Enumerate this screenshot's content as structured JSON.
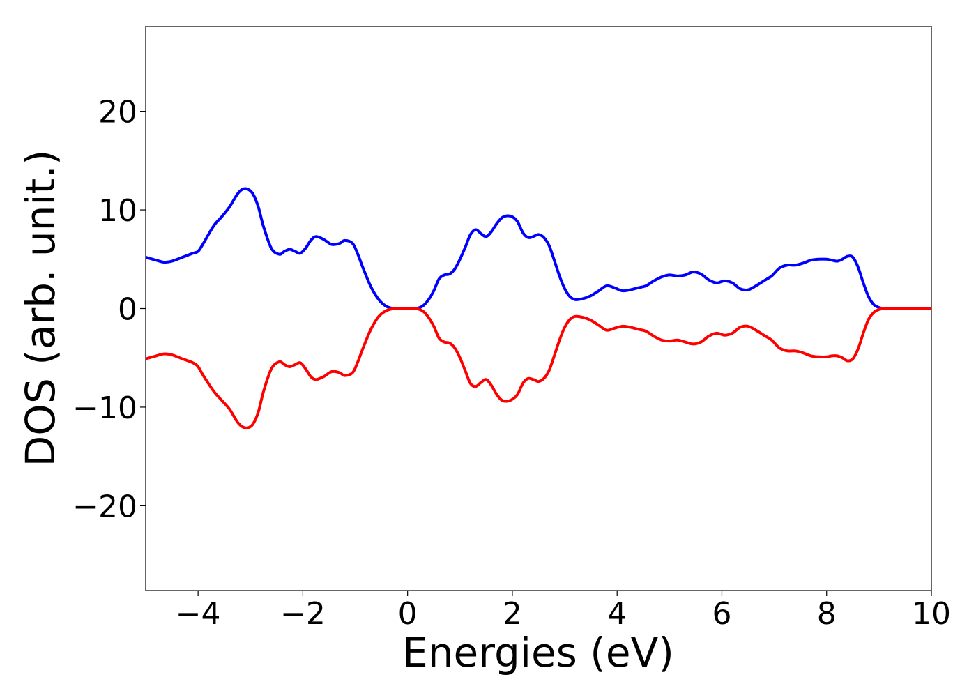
{
  "chart_data": {
    "type": "line",
    "title": "",
    "xlabel": "Energies (eV)",
    "ylabel": "DOS (arb. unit.)",
    "xlim": [
      -5,
      10
    ],
    "ylim": [
      -28.6,
      28.6
    ],
    "xticks": [
      -4,
      -2,
      0,
      2,
      4,
      6,
      8,
      10
    ],
    "xtick_labels": [
      "−4",
      "−2",
      "0",
      "2",
      "4",
      "6",
      "8",
      "10"
    ],
    "yticks": [
      -20,
      -10,
      0,
      10,
      20
    ],
    "ytick_labels": [
      "−20",
      "−10",
      "0",
      "10",
      "20"
    ],
    "grid": false,
    "legend": "none",
    "series": [
      {
        "color": "#0000ff",
        "x": [
          -5.0,
          -4.8,
          -4.65,
          -4.5,
          -4.3,
          -4.1,
          -4.0,
          -3.9,
          -3.7,
          -3.55,
          -3.4,
          -3.25,
          -3.15,
          -3.05,
          -2.95,
          -2.85,
          -2.75,
          -2.6,
          -2.45,
          -2.35,
          -2.25,
          -2.15,
          -2.05,
          -1.95,
          -1.85,
          -1.75,
          -1.6,
          -1.45,
          -1.3,
          -1.2,
          -1.05,
          -0.95,
          -0.85,
          -0.7,
          -0.55,
          -0.4,
          -0.25,
          -0.1,
          0.0,
          0.1,
          0.2,
          0.3,
          0.4,
          0.5,
          0.6,
          0.7,
          0.8,
          0.9,
          1.0,
          1.1,
          1.2,
          1.3,
          1.4,
          1.5,
          1.6,
          1.7,
          1.8,
          1.9,
          2.0,
          2.1,
          2.2,
          2.3,
          2.4,
          2.5,
          2.6,
          2.7,
          2.8,
          2.9,
          3.0,
          3.1,
          3.2,
          3.35,
          3.5,
          3.65,
          3.8,
          3.95,
          4.1,
          4.25,
          4.4,
          4.55,
          4.7,
          4.85,
          5.0,
          5.15,
          5.3,
          5.45,
          5.6,
          5.75,
          5.9,
          6.05,
          6.2,
          6.35,
          6.5,
          6.65,
          6.8,
          6.95,
          7.1,
          7.25,
          7.4,
          7.55,
          7.7,
          7.85,
          8.0,
          8.1,
          8.2,
          8.3,
          8.4,
          8.5,
          8.6,
          8.7,
          8.8,
          8.9,
          9.0,
          9.1,
          9.25,
          9.5,
          10.0
        ],
        "y": [
          5.2,
          4.9,
          4.7,
          4.8,
          5.2,
          5.6,
          5.8,
          6.6,
          8.4,
          9.3,
          10.3,
          11.6,
          12.1,
          12.1,
          11.6,
          10.3,
          8.3,
          6.1,
          5.5,
          5.8,
          6.0,
          5.8,
          5.6,
          6.1,
          6.9,
          7.3,
          7.0,
          6.5,
          6.6,
          6.9,
          6.6,
          5.5,
          4.1,
          2.2,
          0.9,
          0.2,
          0.0,
          0.0,
          0.0,
          0.0,
          0.05,
          0.3,
          0.9,
          1.8,
          3.0,
          3.4,
          3.5,
          4.0,
          5.0,
          6.2,
          7.5,
          8.0,
          7.6,
          7.3,
          7.8,
          8.6,
          9.2,
          9.4,
          9.3,
          8.8,
          7.7,
          7.2,
          7.3,
          7.5,
          7.2,
          6.4,
          4.9,
          3.3,
          2.0,
          1.2,
          0.9,
          1.0,
          1.3,
          1.8,
          2.3,
          2.1,
          1.8,
          1.9,
          2.1,
          2.3,
          2.8,
          3.2,
          3.4,
          3.3,
          3.4,
          3.7,
          3.5,
          2.9,
          2.6,
          2.8,
          2.6,
          2.0,
          1.9,
          2.3,
          2.8,
          3.3,
          4.1,
          4.4,
          4.4,
          4.6,
          4.9,
          5.0,
          5.0,
          4.9,
          4.8,
          5.0,
          5.3,
          5.2,
          4.2,
          2.6,
          1.2,
          0.4,
          0.1,
          0.0,
          0.0,
          0.0,
          0.0
        ]
      },
      {
        "color": "#ff0000",
        "x": [
          -5.0,
          -4.8,
          -4.65,
          -4.5,
          -4.3,
          -4.1,
          -4.0,
          -3.9,
          -3.7,
          -3.55,
          -3.4,
          -3.25,
          -3.15,
          -3.05,
          -2.95,
          -2.85,
          -2.75,
          -2.6,
          -2.45,
          -2.35,
          -2.25,
          -2.15,
          -2.05,
          -1.95,
          -1.85,
          -1.75,
          -1.6,
          -1.45,
          -1.3,
          -1.2,
          -1.05,
          -0.95,
          -0.85,
          -0.7,
          -0.55,
          -0.4,
          -0.25,
          -0.1,
          0.0,
          0.1,
          0.2,
          0.3,
          0.4,
          0.5,
          0.6,
          0.7,
          0.8,
          0.9,
          1.0,
          1.1,
          1.2,
          1.3,
          1.4,
          1.5,
          1.6,
          1.7,
          1.8,
          1.9,
          2.0,
          2.1,
          2.2,
          2.3,
          2.4,
          2.5,
          2.6,
          2.7,
          2.8,
          2.9,
          3.0,
          3.1,
          3.2,
          3.35,
          3.5,
          3.65,
          3.8,
          3.95,
          4.1,
          4.25,
          4.4,
          4.55,
          4.7,
          4.85,
          5.0,
          5.15,
          5.3,
          5.45,
          5.6,
          5.75,
          5.9,
          6.05,
          6.2,
          6.35,
          6.5,
          6.65,
          6.8,
          6.95,
          7.1,
          7.25,
          7.4,
          7.55,
          7.7,
          7.85,
          8.0,
          8.1,
          8.2,
          8.3,
          8.4,
          8.5,
          8.6,
          8.7,
          8.8,
          8.9,
          9.0,
          9.1,
          9.25,
          9.5,
          10.0
        ],
        "y": [
          -5.1,
          -4.8,
          -4.6,
          -4.7,
          -5.1,
          -5.5,
          -5.9,
          -6.8,
          -8.4,
          -9.3,
          -10.2,
          -11.5,
          -12.0,
          -12.1,
          -11.7,
          -10.5,
          -8.4,
          -6.1,
          -5.4,
          -5.7,
          -5.9,
          -5.7,
          -5.5,
          -6.1,
          -6.9,
          -7.2,
          -6.9,
          -6.4,
          -6.5,
          -6.8,
          -6.5,
          -5.4,
          -4.0,
          -2.1,
          -0.8,
          -0.2,
          0.0,
          0.0,
          0.0,
          0.0,
          -0.05,
          -0.3,
          -0.9,
          -1.8,
          -3.0,
          -3.4,
          -3.5,
          -4.0,
          -5.0,
          -6.3,
          -7.6,
          -7.9,
          -7.5,
          -7.2,
          -7.8,
          -8.7,
          -9.3,
          -9.4,
          -9.2,
          -8.7,
          -7.6,
          -7.1,
          -7.2,
          -7.4,
          -7.1,
          -6.3,
          -4.8,
          -3.2,
          -1.9,
          -1.1,
          -0.8,
          -0.9,
          -1.2,
          -1.7,
          -2.2,
          -2.0,
          -1.8,
          -1.9,
          -2.1,
          -2.3,
          -2.8,
          -3.2,
          -3.3,
          -3.2,
          -3.4,
          -3.6,
          -3.4,
          -2.8,
          -2.5,
          -2.7,
          -2.5,
          -1.9,
          -1.8,
          -2.2,
          -2.7,
          -3.2,
          -4.0,
          -4.3,
          -4.3,
          -4.5,
          -4.8,
          -4.9,
          -4.9,
          -4.8,
          -4.8,
          -5.0,
          -5.3,
          -5.1,
          -4.1,
          -2.5,
          -1.1,
          -0.4,
          -0.1,
          0.0,
          0.0,
          0.0,
          0.0
        ]
      }
    ]
  }
}
